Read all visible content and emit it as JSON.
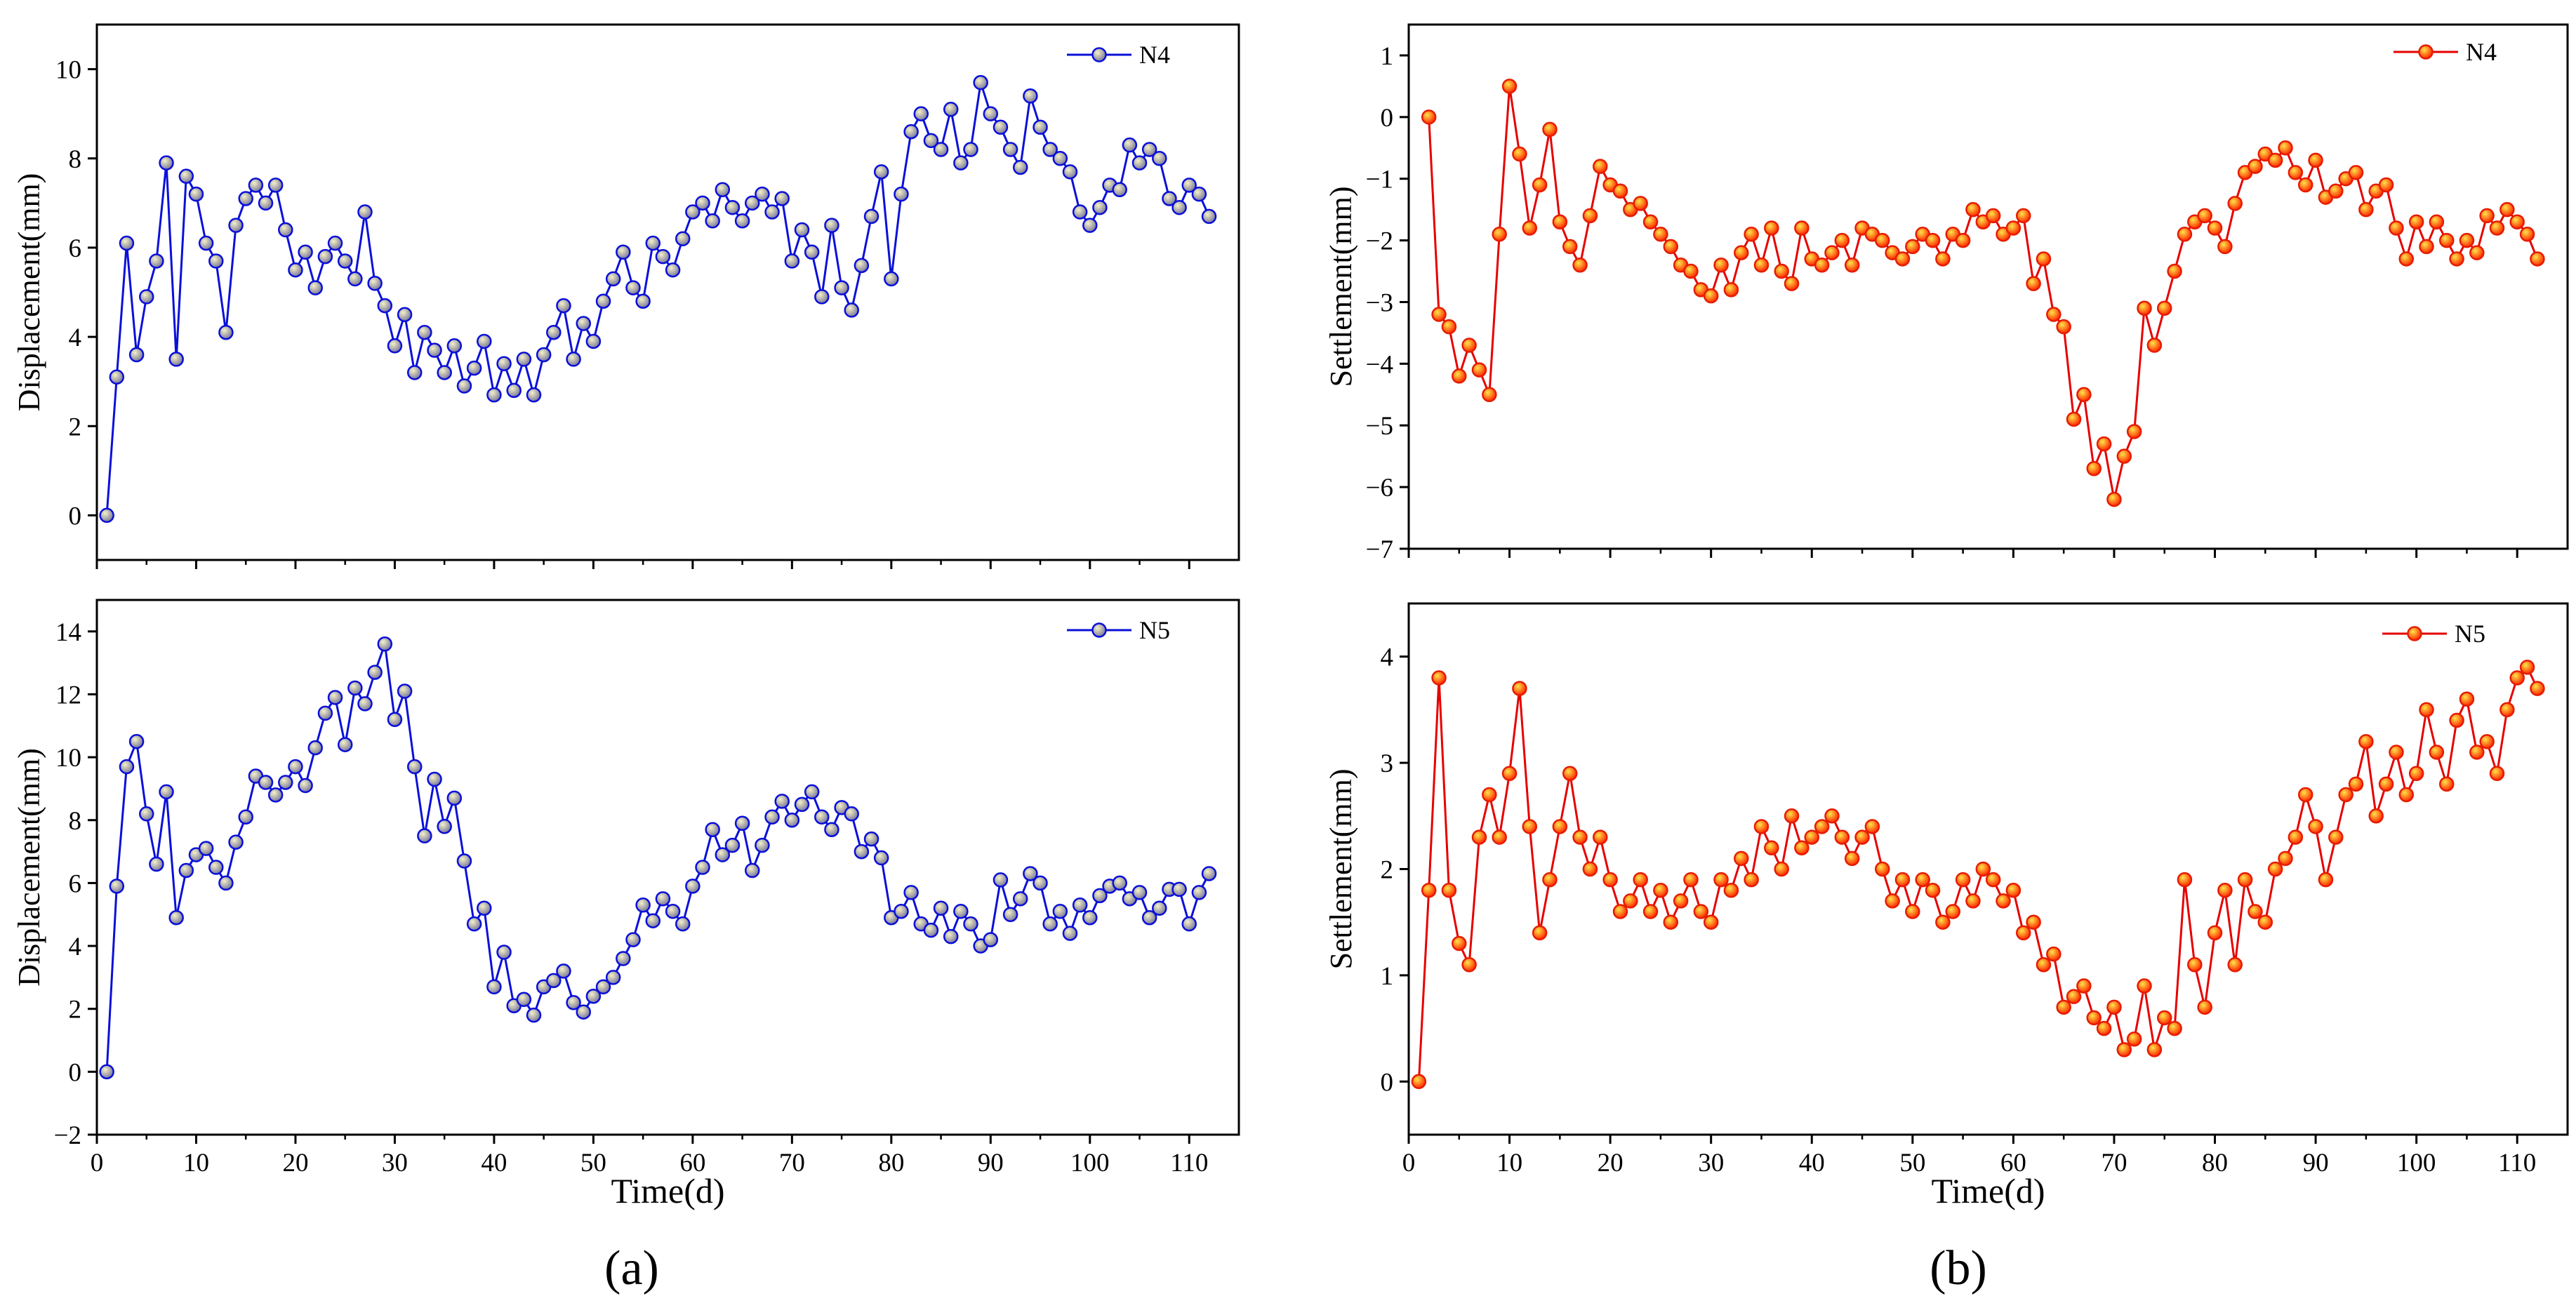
{
  "figure": {
    "label_a": "(a)",
    "label_b": "(b)",
    "xlabel": "Time(d)"
  },
  "chart_data": [
    {
      "id": "a-top",
      "type": "line",
      "xlabel": "",
      "ylabel": "Displacement(mm)",
      "xlim": [
        0,
        115
      ],
      "ylim": [
        -1,
        11
      ],
      "yticks": [
        0,
        2,
        4,
        6,
        8,
        10
      ],
      "xticks": [
        0,
        10,
        20,
        30,
        40,
        50,
        60,
        70,
        80,
        90,
        100,
        110
      ],
      "color": "#0a10d8",
      "series": [
        {
          "name": "N4",
          "x": [
            1,
            2,
            3,
            4,
            5,
            6,
            7,
            8,
            9,
            10,
            11,
            12,
            13,
            14,
            15,
            16,
            17,
            18,
            19,
            20,
            21,
            22,
            23,
            24,
            25,
            26,
            27,
            28,
            29,
            30,
            31,
            32,
            33,
            34,
            35,
            36,
            37,
            38,
            39,
            40,
            41,
            42,
            43,
            44,
            45,
            46,
            47,
            48,
            49,
            50,
            51,
            52,
            53,
            54,
            55,
            56,
            57,
            58,
            59,
            60,
            61,
            62,
            63,
            64,
            65,
            66,
            67,
            68,
            69,
            70,
            71,
            72,
            73,
            74,
            75,
            76,
            77,
            78,
            79,
            80,
            81,
            82,
            83,
            84,
            85,
            86,
            87,
            88,
            89,
            90,
            91,
            92,
            93,
            94,
            95,
            96,
            97,
            98,
            99,
            100,
            101,
            102,
            103,
            104,
            105,
            106,
            107,
            108,
            109,
            110,
            111,
            112
          ],
          "values": [
            0,
            3.1,
            6.1,
            3.6,
            4.9,
            5.7,
            7.9,
            3.5,
            7.6,
            7.2,
            6.1,
            5.7,
            4.1,
            6.5,
            7.1,
            7.4,
            7.0,
            7.4,
            6.4,
            5.5,
            5.9,
            5.1,
            5.8,
            6.1,
            5.7,
            5.3,
            6.8,
            5.2,
            4.7,
            3.8,
            4.5,
            3.2,
            4.1,
            3.7,
            3.2,
            3.8,
            2.9,
            3.3,
            3.9,
            2.7,
            3.4,
            2.8,
            3.5,
            2.7,
            3.6,
            4.1,
            4.7,
            3.5,
            4.3,
            3.9,
            4.8,
            5.3,
            5.9,
            5.1,
            4.8,
            6.1,
            5.8,
            5.5,
            6.2,
            6.8,
            7.0,
            6.6,
            7.3,
            6.9,
            6.6,
            7.0,
            7.2,
            6.8,
            7.1,
            5.7,
            6.4,
            5.9,
            4.9,
            6.5,
            5.1,
            4.6,
            5.6,
            6.7,
            7.7,
            5.3,
            7.2,
            8.6,
            9.0,
            8.4,
            8.2,
            9.1,
            7.9,
            8.2,
            9.7,
            9.0,
            8.7,
            8.2,
            7.8,
            9.4,
            8.7,
            8.2,
            8.0,
            7.7,
            6.8,
            6.5,
            6.9,
            7.4,
            7.3,
            8.3,
            7.9,
            8.2,
            8.0,
            7.1,
            6.9,
            7.4,
            7.2,
            6.7
          ]
        }
      ]
    },
    {
      "id": "a-bottom",
      "type": "line",
      "xlabel": "Time(d)",
      "ylabel": "Displacement(mm)",
      "xlim": [
        0,
        115
      ],
      "ylim": [
        -2,
        15
      ],
      "yticks": [
        -2,
        0,
        2,
        4,
        6,
        8,
        10,
        12,
        14
      ],
      "xticks": [
        0,
        10,
        20,
        30,
        40,
        50,
        60,
        70,
        80,
        90,
        100,
        110
      ],
      "color": "#0a10d8",
      "series": [
        {
          "name": "N5",
          "x": [
            1,
            2,
            3,
            4,
            5,
            6,
            7,
            8,
            9,
            10,
            11,
            12,
            13,
            14,
            15,
            16,
            17,
            18,
            19,
            20,
            21,
            22,
            23,
            24,
            25,
            26,
            27,
            28,
            29,
            30,
            31,
            32,
            33,
            34,
            35,
            36,
            37,
            38,
            39,
            40,
            41,
            42,
            43,
            44,
            45,
            46,
            47,
            48,
            49,
            50,
            51,
            52,
            53,
            54,
            55,
            56,
            57,
            58,
            59,
            60,
            61,
            62,
            63,
            64,
            65,
            66,
            67,
            68,
            69,
            70,
            71,
            72,
            73,
            74,
            75,
            76,
            77,
            78,
            79,
            80,
            81,
            82,
            83,
            84,
            85,
            86,
            87,
            88,
            89,
            90,
            91,
            92,
            93,
            94,
            95,
            96,
            97,
            98,
            99,
            100,
            101,
            102,
            103,
            104,
            105,
            106,
            107,
            108,
            109,
            110,
            111,
            112
          ],
          "values": [
            0,
            5.9,
            9.7,
            10.5,
            8.2,
            6.6,
            8.9,
            4.9,
            6.4,
            6.9,
            7.1,
            6.5,
            6.0,
            7.3,
            8.1,
            9.4,
            9.2,
            8.8,
            9.2,
            9.7,
            9.1,
            10.3,
            11.4,
            11.9,
            10.4,
            12.2,
            11.7,
            12.7,
            13.6,
            11.2,
            12.1,
            9.7,
            7.5,
            9.3,
            7.8,
            8.7,
            6.7,
            4.7,
            5.2,
            2.7,
            3.8,
            2.1,
            2.3,
            1.8,
            2.7,
            2.9,
            3.2,
            2.2,
            1.9,
            2.4,
            2.7,
            3.0,
            3.6,
            4.2,
            5.3,
            4.8,
            5.5,
            5.1,
            4.7,
            5.9,
            6.5,
            7.7,
            6.9,
            7.2,
            7.9,
            6.4,
            7.2,
            8.1,
            8.6,
            8.0,
            8.5,
            8.9,
            8.1,
            7.7,
            8.4,
            8.2,
            7.0,
            7.4,
            6.8,
            4.9,
            5.1,
            5.7,
            4.7,
            4.5,
            5.2,
            4.3,
            5.1,
            4.7,
            4.0,
            4.2,
            6.1,
            5.0,
            5.5,
            6.3,
            6.0,
            4.7,
            5.1,
            4.4,
            5.3,
            4.9,
            5.6,
            5.9,
            6.0,
            5.5,
            5.7,
            4.9,
            5.2,
            5.8,
            5.8,
            4.7,
            5.7,
            6.3
          ]
        }
      ]
    },
    {
      "id": "b-top",
      "type": "line",
      "xlabel": "",
      "ylabel": "Settlement(mm)",
      "xlim": [
        0,
        115
      ],
      "ylim": [
        -7,
        1.5
      ],
      "yticks": [
        -7,
        -6,
        -5,
        -4,
        -3,
        -2,
        -1,
        0,
        1
      ],
      "xticks": [
        0,
        10,
        20,
        30,
        40,
        50,
        60,
        70,
        80,
        90,
        100,
        110
      ],
      "color": "#e60000",
      "series": [
        {
          "name": "N4",
          "x": [
            2,
            3,
            4,
            5,
            6,
            7,
            8,
            9,
            10,
            11,
            12,
            13,
            14,
            15,
            16,
            17,
            18,
            19,
            20,
            21,
            22,
            23,
            24,
            25,
            26,
            27,
            28,
            29,
            30,
            31,
            32,
            33,
            34,
            35,
            36,
            37,
            38,
            39,
            40,
            41,
            42,
            43,
            44,
            45,
            46,
            47,
            48,
            49,
            50,
            51,
            52,
            53,
            54,
            55,
            56,
            57,
            58,
            59,
            60,
            61,
            62,
            63,
            64,
            65,
            66,
            67,
            68,
            69,
            70,
            71,
            72,
            73,
            74,
            75,
            76,
            77,
            78,
            79,
            80,
            81,
            82,
            83,
            84,
            85,
            86,
            87,
            88,
            89,
            90,
            91,
            92,
            93,
            94,
            95,
            96,
            97,
            98,
            99,
            100,
            101,
            102,
            103,
            104,
            105,
            106,
            107,
            108,
            109,
            110,
            111,
            112
          ],
          "values": [
            0,
            -3.2,
            -3.4,
            -4.2,
            -3.7,
            -4.1,
            -4.5,
            -1.9,
            0.5,
            -0.6,
            -1.8,
            -1.1,
            -0.2,
            -1.7,
            -2.1,
            -2.4,
            -1.6,
            -0.8,
            -1.1,
            -1.2,
            -1.5,
            -1.4,
            -1.7,
            -1.9,
            -2.1,
            -2.4,
            -2.5,
            -2.8,
            -2.9,
            -2.4,
            -2.8,
            -2.2,
            -1.9,
            -2.4,
            -1.8,
            -2.5,
            -2.7,
            -1.8,
            -2.3,
            -2.4,
            -2.2,
            -2.0,
            -2.4,
            -1.8,
            -1.9,
            -2.0,
            -2.2,
            -2.3,
            -2.1,
            -1.9,
            -2.0,
            -2.3,
            -1.9,
            -2.0,
            -1.5,
            -1.7,
            -1.6,
            -1.9,
            -1.8,
            -1.6,
            -2.7,
            -2.3,
            -3.2,
            -3.4,
            -4.9,
            -4.5,
            -5.7,
            -5.3,
            -6.2,
            -5.5,
            -5.1,
            -3.1,
            -3.7,
            -3.1,
            -2.5,
            -1.9,
            -1.7,
            -1.6,
            -1.8,
            -2.1,
            -1.4,
            -0.9,
            -0.8,
            -0.6,
            -0.7,
            -0.5,
            -0.9,
            -1.1,
            -0.7,
            -1.3,
            -1.2,
            -1.0,
            -0.9,
            -1.5,
            -1.2,
            -1.1,
            -1.8,
            -2.3,
            -1.7,
            -2.1,
            -1.7,
            -2.0,
            -2.3,
            -2.0,
            -2.2,
            -1.6,
            -1.8,
            -1.5,
            -1.7,
            -1.9,
            -2.3
          ]
        }
      ]
    },
    {
      "id": "b-bottom",
      "type": "line",
      "xlabel": "Time(d)",
      "ylabel": "Settlement(mm)",
      "xlim": [
        0,
        115
      ],
      "ylim": [
        -0.5,
        4.5
      ],
      "yticks": [
        0,
        1,
        2,
        3,
        4
      ],
      "xticks": [
        0,
        10,
        20,
        30,
        40,
        50,
        60,
        70,
        80,
        90,
        100,
        110
      ],
      "color": "#e60000",
      "series": [
        {
          "name": "N5",
          "x": [
            1,
            2,
            3,
            4,
            5,
            6,
            7,
            8,
            9,
            10,
            11,
            12,
            13,
            14,
            15,
            16,
            17,
            18,
            19,
            20,
            21,
            22,
            23,
            24,
            25,
            26,
            27,
            28,
            29,
            30,
            31,
            32,
            33,
            34,
            35,
            36,
            37,
            38,
            39,
            40,
            41,
            42,
            43,
            44,
            45,
            46,
            47,
            48,
            49,
            50,
            51,
            52,
            53,
            54,
            55,
            56,
            57,
            58,
            59,
            60,
            61,
            62,
            63,
            64,
            65,
            66,
            67,
            68,
            69,
            70,
            71,
            72,
            73,
            74,
            75,
            76,
            77,
            78,
            79,
            80,
            81,
            82,
            83,
            84,
            85,
            86,
            87,
            88,
            89,
            90,
            91,
            92,
            93,
            94,
            95,
            96,
            97,
            98,
            99,
            100,
            101,
            102,
            103,
            104,
            105,
            106,
            107,
            108,
            109,
            110,
            111,
            112
          ],
          "values": [
            0,
            1.8,
            3.8,
            1.8,
            1.3,
            1.1,
            2.3,
            2.7,
            2.3,
            2.9,
            3.7,
            2.4,
            1.4,
            1.9,
            2.4,
            2.9,
            2.3,
            2.0,
            2.3,
            1.9,
            1.6,
            1.7,
            1.9,
            1.6,
            1.8,
            1.5,
            1.7,
            1.9,
            1.6,
            1.5,
            1.9,
            1.8,
            2.1,
            1.9,
            2.4,
            2.2,
            2.0,
            2.5,
            2.2,
            2.3,
            2.4,
            2.5,
            2.3,
            2.1,
            2.3,
            2.4,
            2.0,
            1.7,
            1.9,
            1.6,
            1.9,
            1.8,
            1.5,
            1.6,
            1.9,
            1.7,
            2.0,
            1.9,
            1.7,
            1.8,
            1.4,
            1.5,
            1.1,
            1.2,
            0.7,
            0.8,
            0.9,
            0.6,
            0.5,
            0.7,
            0.3,
            0.4,
            0.9,
            0.3,
            0.6,
            0.5,
            1.9,
            1.1,
            0.7,
            1.4,
            1.8,
            1.1,
            1.9,
            1.6,
            1.5,
            2.0,
            2.1,
            2.3,
            2.7,
            2.4,
            1.9,
            2.3,
            2.7,
            2.8,
            3.2,
            2.5,
            2.8,
            3.1,
            2.7,
            2.9,
            3.5,
            3.1,
            2.8,
            3.4,
            3.6,
            3.1,
            3.2,
            2.9,
            3.5,
            3.8,
            3.9,
            3.7
          ]
        }
      ]
    }
  ]
}
